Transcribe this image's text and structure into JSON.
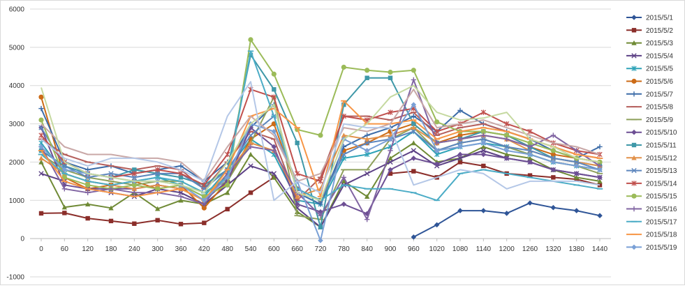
{
  "chart_data": {
    "type": "line",
    "title": "",
    "xlabel": "",
    "ylabel": "",
    "x": [
      0,
      60,
      120,
      180,
      240,
      300,
      360,
      420,
      480,
      540,
      600,
      660,
      720,
      780,
      840,
      900,
      960,
      1020,
      1080,
      1140,
      1200,
      1260,
      1320,
      1380,
      1440
    ],
    "xticks": [
      "0",
      "60",
      "120",
      "180",
      "240",
      "300",
      "360",
      "420",
      "480",
      "540",
      "600",
      "660",
      "720",
      "780",
      "840",
      "900",
      "960",
      "1020",
      "1080",
      "1140",
      "1200",
      "1260",
      "1320",
      "1380",
      "1440"
    ],
    "ylim": [
      -1000,
      6000
    ],
    "yticks": [
      "-1000",
      "0",
      "1000",
      "2000",
      "3000",
      "4000",
      "5000",
      "6000"
    ],
    "grid": "horizontal",
    "legend": "right",
    "series": [
      {
        "name": "2015/5/1",
        "color": "#2f5597",
        "marker": "diamond",
        "values": [
          null,
          null,
          null,
          null,
          null,
          null,
          null,
          null,
          null,
          null,
          null,
          null,
          null,
          null,
          null,
          null,
          40,
          360,
          730,
          730,
          660,
          930,
          810,
          730,
          600
        ]
      },
      {
        "name": "2015/5/2",
        "color": "#8b2e2a",
        "marker": "square",
        "values": [
          660,
          670,
          530,
          460,
          390,
          480,
          380,
          410,
          770,
          1200,
          1600,
          null,
          null,
          null,
          null,
          1700,
          1760,
          1600,
          2000,
          1900,
          1700,
          1650,
          1600,
          1550,
          1400
        ]
      },
      {
        "name": "2015/5/3",
        "color": "#6f8a35",
        "marker": "triangle",
        "values": [
          2000,
          820,
          900,
          800,
          1200,
          780,
          1000,
          900,
          1200,
          2200,
          1600,
          700,
          300,
          1500,
          1100,
          2100,
          2500,
          2000,
          2100,
          2400,
          2200,
          2100,
          1800,
          1600,
          1500
        ]
      },
      {
        "name": "2015/5/4",
        "color": "#5c4185",
        "marker": "x",
        "values": [
          1700,
          1500,
          1300,
          1200,
          1100,
          1300,
          1200,
          900,
          1400,
          1900,
          1700,
          800,
          300,
          1400,
          1700,
          2000,
          2300,
          1900,
          2100,
          2300,
          2100,
          2000,
          1800,
          1700,
          1600
        ]
      },
      {
        "name": "2015/5/5",
        "color": "#2fa3b8",
        "marker": "asterisk",
        "values": [
          2500,
          1700,
          1500,
          1400,
          1500,
          1600,
          1400,
          1100,
          1800,
          2600,
          2200,
          1000,
          900,
          2100,
          2200,
          2400,
          2800,
          2200,
          2400,
          2500,
          2400,
          2200,
          2000,
          1900,
          1800
        ]
      },
      {
        "name": "2015/5/6",
        "color": "#cc6b17",
        "marker": "circle",
        "values": [
          3700,
          1600,
          1300,
          1400,
          1500,
          1300,
          1400,
          800,
          1500,
          2600,
          3000,
          1300,
          1000,
          2300,
          2500,
          2800,
          3000,
          2500,
          2700,
          2800,
          2700,
          2400,
          2200,
          2100,
          2000
        ]
      },
      {
        "name": "2015/5/7",
        "color": "#3c6ca8",
        "marker": "plus",
        "values": [
          3400,
          2000,
          1800,
          1900,
          1700,
          1800,
          1900,
          1500,
          2000,
          2900,
          3500,
          1200,
          900,
          2400,
          2700,
          2900,
          3200,
          2800,
          3350,
          3000,
          2800,
          2600,
          2300,
          2100,
          2400
        ]
      },
      {
        "name": "2015/5/8",
        "color": "#b55f5c",
        "marker": "dash",
        "values": [
          2600,
          2200,
          2000,
          1900,
          1800,
          1900,
          1800,
          1300,
          2000,
          2800,
          2600,
          1000,
          1600,
          3200,
          3200,
          3100,
          3300,
          2700,
          2900,
          3000,
          2800,
          2600,
          2400,
          2200,
          2100
        ]
      },
      {
        "name": "2015/5/9",
        "color": "#8ea05c",
        "marker": "dash",
        "values": [
          2200,
          1800,
          1600,
          1500,
          1400,
          1500,
          1500,
          1200,
          1500,
          2500,
          3700,
          600,
          500,
          1800,
          1800,
          2600,
          2900,
          2300,
          2500,
          2600,
          2400,
          2200,
          2000,
          1900,
          1700
        ]
      },
      {
        "name": "2015/5/10",
        "color": "#6d4f94",
        "marker": "diamond",
        "values": [
          2900,
          1400,
          1300,
          1300,
          1300,
          1400,
          1300,
          1000,
          1500,
          2900,
          2400,
          900,
          700,
          900,
          650,
          1800,
          2100,
          1950,
          2200,
          2200,
          2100,
          2000,
          1800,
          1700,
          1600
        ]
      },
      {
        "name": "2015/5/11",
        "color": "#3f98a8",
        "marker": "square",
        "values": [
          2300,
          1900,
          1700,
          1600,
          1800,
          1700,
          1600,
          1400,
          1800,
          4800,
          3900,
          2500,
          300,
          3500,
          4200,
          4200,
          3000,
          2500,
          2600,
          2800,
          2700,
          2400,
          2100,
          2000,
          1900
        ]
      },
      {
        "name": "2015/5/12",
        "color": "#e2914a",
        "marker": "triangle",
        "values": [
          2100,
          1700,
          1500,
          1400,
          1300,
          1400,
          1300,
          1000,
          1700,
          2500,
          2300,
          1100,
          1300,
          2700,
          2600,
          2700,
          2900,
          2500,
          2600,
          2700,
          2600,
          2300,
          2100,
          2000,
          1900
        ]
      },
      {
        "name": "2015/5/13",
        "color": "#5d86bd",
        "marker": "x",
        "values": [
          2900,
          1900,
          1600,
          1700,
          1600,
          1700,
          1700,
          1300,
          1800,
          2700,
          3200,
          1300,
          1000,
          2200,
          2500,
          2600,
          2800,
          2300,
          2500,
          2600,
          2400,
          2300,
          2100,
          2000,
          1800
        ]
      },
      {
        "name": "2015/5/14",
        "color": "#c0504d",
        "marker": "asterisk",
        "values": [
          2700,
          2000,
          1700,
          1600,
          1700,
          1800,
          1700,
          1400,
          2200,
          3900,
          3700,
          1700,
          1500,
          3200,
          3100,
          3300,
          3400,
          2800,
          3000,
          3300,
          3000,
          2800,
          2500,
          2300,
          2200
        ]
      },
      {
        "name": "2015/5/15",
        "color": "#9bbb59",
        "marker": "circle",
        "values": [
          3100,
          1600,
          1400,
          1300,
          1400,
          1300,
          1400,
          1100,
          1400,
          5200,
          4300,
          2850,
          2700,
          4480,
          4400,
          4350,
          4400,
          3050,
          2800,
          2800,
          2700,
          2500,
          2300,
          2100,
          2000
        ]
      },
      {
        "name": "2015/5/16",
        "color": "#8064a2",
        "marker": "plus",
        "values": [
          2400,
          1300,
          1200,
          1300,
          1200,
          1200,
          1100,
          900,
          1700,
          2400,
          2300,
          1200,
          600,
          1600,
          500,
          2300,
          4150,
          2500,
          2600,
          2700,
          2600,
          2400,
          2700,
          2300,
          1900
        ]
      },
      {
        "name": "2015/5/17",
        "color": "#4bacc6",
        "marker": "dash",
        "values": [
          2200,
          1700,
          1500,
          1400,
          1500,
          1600,
          1500,
          1200,
          1600,
          4900,
          3200,
          1300,
          1000,
          1400,
          1300,
          1300,
          1200,
          1000,
          1700,
          1800,
          1700,
          1600,
          1500,
          1400,
          1300
        ]
      },
      {
        "name": "2015/5/18",
        "color": "#f79646",
        "marker": "dash",
        "values": [
          2300,
          1500,
          1300,
          1200,
          1100,
          1200,
          1300,
          1000,
          1800,
          3200,
          3400,
          2900,
          1100,
          3600,
          3000,
          3000,
          3100,
          2600,
          2800,
          2900,
          2800,
          2600,
          2400,
          2200,
          2100
        ]
      },
      {
        "name": "2015/5/19",
        "color": "#7aa0d6",
        "marker": "diamond",
        "values": [
          2400,
          1800,
          1700,
          1600,
          1500,
          1500,
          1400,
          1000,
          1600,
          3000,
          2800,
          1500,
          -50,
          2600,
          2300,
          2600,
          3500,
          2300,
          2400,
          2500,
          2300,
          2200,
          2000,
          1900,
          1800
        ]
      },
      {
        "name": "",
        "color": "#c9a8a7",
        "marker": "none",
        "values": [
          3000,
          2400,
          2200,
          2200,
          2100,
          2100,
          2000,
          1500,
          2400,
          3200,
          2700,
          1500,
          1700,
          2900,
          2800,
          3000,
          3900,
          2900,
          3000,
          3100,
          2900,
          2700,
          2500,
          2400,
          2200
        ]
      },
      {
        "name": "",
        "color": "#c5d9a0",
        "marker": "none",
        "values": [
          3950,
          2000,
          1700,
          1600,
          1500,
          1500,
          1400,
          1200,
          2000,
          3000,
          3500,
          1200,
          1000,
          2600,
          3000,
          3700,
          4000,
          3300,
          3100,
          3150,
          3300,
          2600,
          2400,
          2100,
          2000
        ]
      },
      {
        "name": "",
        "color": "#b4c7e7",
        "marker": "none",
        "values": [
          2600,
          2100,
          1900,
          2100,
          2100,
          2000,
          1800,
          1500,
          3200,
          4100,
          1000,
          1500,
          1200,
          3000,
          2900,
          2900,
          1400,
          1600,
          1800,
          1700,
          1300,
          1500,
          1500,
          1500,
          1400
        ]
      }
    ]
  }
}
